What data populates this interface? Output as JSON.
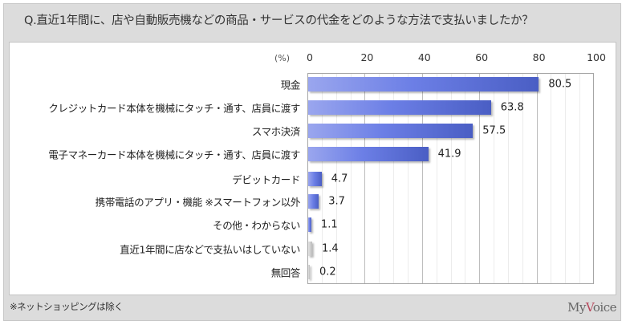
{
  "header": {
    "question": "Q.直近1年間に、店や自動販売機などの商品・サービスの代金をどのような方法で支払いましたか？"
  },
  "axis": {
    "unit_label": "(%)",
    "ticks": [
      "0",
      "20",
      "40",
      "60",
      "80",
      "100"
    ]
  },
  "rows": [
    {
      "label": "現金",
      "value": "80.5",
      "color": "blue"
    },
    {
      "label": "クレジットカード本体を機械にタッチ・通す、店員に渡す",
      "value": "63.8",
      "color": "blue"
    },
    {
      "label": "スマホ決済",
      "value": "57.5",
      "color": "blue"
    },
    {
      "label": "電子マネーカード本体を機械にタッチ・通す、店員に渡す",
      "value": "41.9",
      "color": "blue"
    },
    {
      "label": "デビットカード",
      "value": "4.7",
      "color": "blue"
    },
    {
      "label": "携帯電話のアプリ・機能 ※スマートフォン以外",
      "value": "3.7",
      "color": "blue"
    },
    {
      "label": "その他・わからない",
      "value": "1.1",
      "color": "blue"
    },
    {
      "label": "直近1年間に店などで支払いはしていない",
      "value": "1.4",
      "color": "gray"
    },
    {
      "label": "無回答",
      "value": "0.2",
      "color": "gray"
    }
  ],
  "footer": {
    "note": "※ネットショッピングは除く",
    "brand_prefix": "My",
    "brand_accent": "V",
    "brand_suffix": "oice"
  },
  "colors": {
    "bar_main": "#5b6fd6",
    "bar_excluded": "#c8c8c8",
    "frame": "#dcdcdc"
  },
  "chart_data": {
    "type": "bar",
    "orientation": "horizontal",
    "title": "Q.直近1年間に、店や自動販売機などの商品・サービスの代金をどのような方法で支払いましたか？",
    "xlabel": "(%)",
    "ylabel": "",
    "xlim": [
      0,
      100
    ],
    "x_ticks": [
      0,
      20,
      40,
      60,
      80,
      100
    ],
    "grid": true,
    "categories": [
      "現金",
      "クレジットカード本体を機械にタッチ・通す、店員に渡す",
      "スマホ決済",
      "電子マネーカード本体を機械にタッチ・通す、店員に渡す",
      "デビットカード",
      "携帯電話のアプリ・機能 ※スマートフォン以外",
      "その他・わからない",
      "直近1年間に店などで支払いはしていない",
      "無回答"
    ],
    "values": [
      80.5,
      63.8,
      57.5,
      41.9,
      4.7,
      3.7,
      1.1,
      1.4,
      0.2
    ],
    "annotations": [
      "※ネットショッピングは除く"
    ],
    "source_label": "MyVoice"
  }
}
